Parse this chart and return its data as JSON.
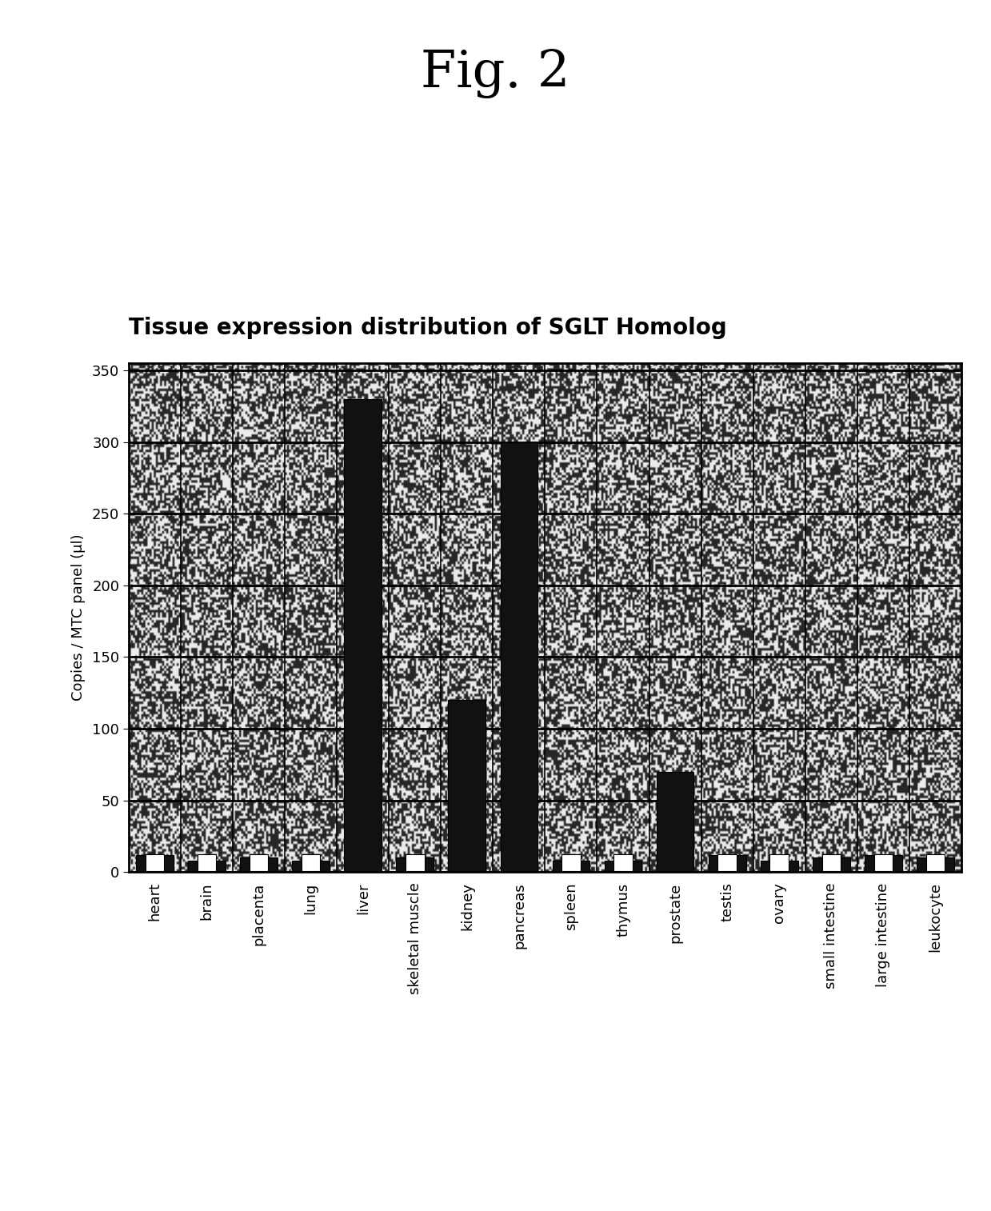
{
  "title_fig": "Fig. 2",
  "title_chart": "Tissue expression distribution of SGLT Homolog",
  "ylabel": "Copies / MTC panel (μl)",
  "categories": [
    "heart",
    "brain",
    "placenta",
    "lung",
    "liver",
    "skeletal muscle",
    "kidney",
    "pancreas",
    "spleen",
    "thymus",
    "prostate",
    "testis",
    "ovary",
    "small intestine",
    "large intestine",
    "leukocyte"
  ],
  "values": [
    12,
    8,
    10,
    8,
    330,
    10,
    120,
    300,
    8,
    8,
    70,
    12,
    8,
    10,
    12,
    10
  ],
  "ylim": [
    0,
    355
  ],
  "yticks": [
    0,
    50,
    100,
    150,
    200,
    250,
    300,
    350
  ],
  "bar_color": "#111111",
  "title_fontsize": 20,
  "fig_title_fontsize": 46,
  "ylabel_fontsize": 13,
  "xtick_fontsize": 13,
  "ytick_fontsize": 13,
  "bar_width": 0.72,
  "noise_seed": 42,
  "band_colors_alt": [
    "#b8b8b8",
    "#d0d0d0"
  ]
}
